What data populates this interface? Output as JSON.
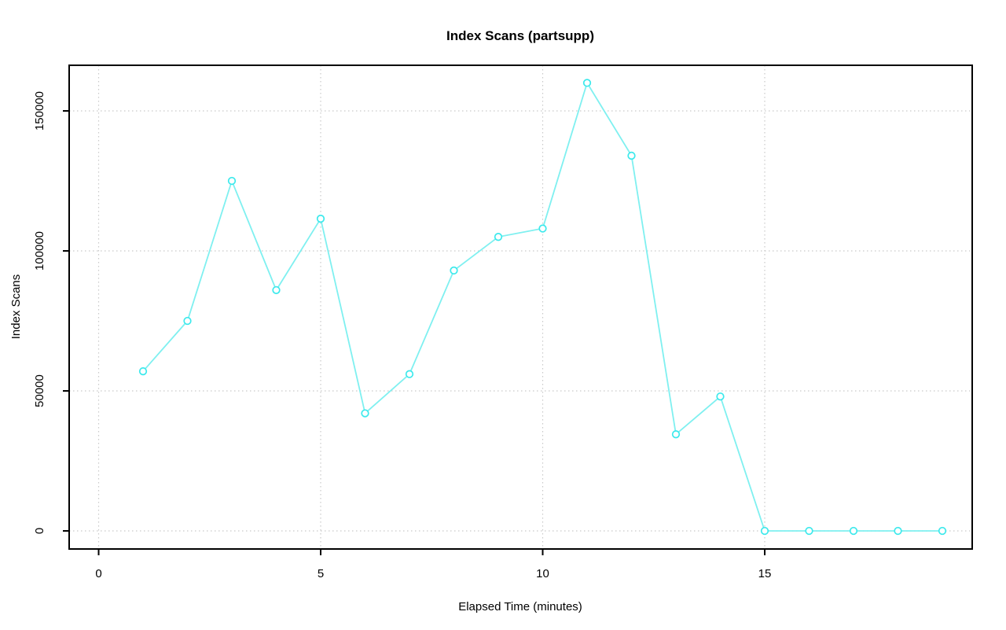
{
  "chart_data": {
    "type": "line",
    "title": "Index Scans (partsupp)",
    "xlabel": "Elapsed Time (minutes)",
    "ylabel": "Index Scans",
    "x": [
      1,
      2,
      3,
      4,
      5,
      6,
      7,
      8,
      9,
      10,
      11,
      12,
      13,
      14,
      15,
      16,
      17,
      18,
      19
    ],
    "series": [
      {
        "name": "Index Scans",
        "values": [
          57000,
          75000,
          125000,
          86000,
          111500,
          42000,
          56000,
          93000,
          105000,
          108000,
          160000,
          134000,
          34500,
          48000,
          0,
          0,
          0,
          0,
          0
        ]
      }
    ],
    "x_ticks": [
      0,
      5,
      10,
      15
    ],
    "y_ticks": [
      0,
      50000,
      100000,
      150000
    ],
    "xlim": [
      -0.7,
      19.7
    ],
    "ylim": [
      -6500,
      166000
    ],
    "grid": "dotted",
    "legend": "none",
    "marker": "open-circle",
    "colors": {
      "line": "#7ff0f0",
      "marker": "#3ce9ec",
      "grid": "#c9c9c9",
      "axis": "#000000",
      "text": "#000000",
      "background": "#ffffff"
    }
  }
}
